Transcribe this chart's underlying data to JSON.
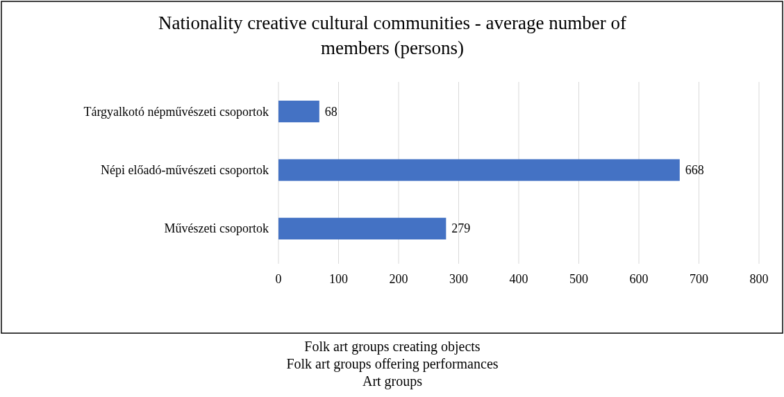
{
  "chart_data": {
    "type": "bar",
    "orientation": "horizontal",
    "title": "Nationality creative cultural communities - average number of members (persons)",
    "categories": [
      "Tárgyalkotó népművészeti csoportok",
      "Népi előadó-művészeti csoportok",
      "Művészeti csoportok"
    ],
    "values": [
      68,
      668,
      279
    ],
    "color": "#4472c4",
    "data_labels": true,
    "xlim": [
      0,
      800
    ],
    "xticks": [
      0,
      100,
      200,
      300,
      400,
      500,
      600,
      700,
      800
    ],
    "grid": "x",
    "annotations": [
      "Folk art groups creating objects",
      "Folk art groups offering performances",
      "Art groups"
    ]
  }
}
